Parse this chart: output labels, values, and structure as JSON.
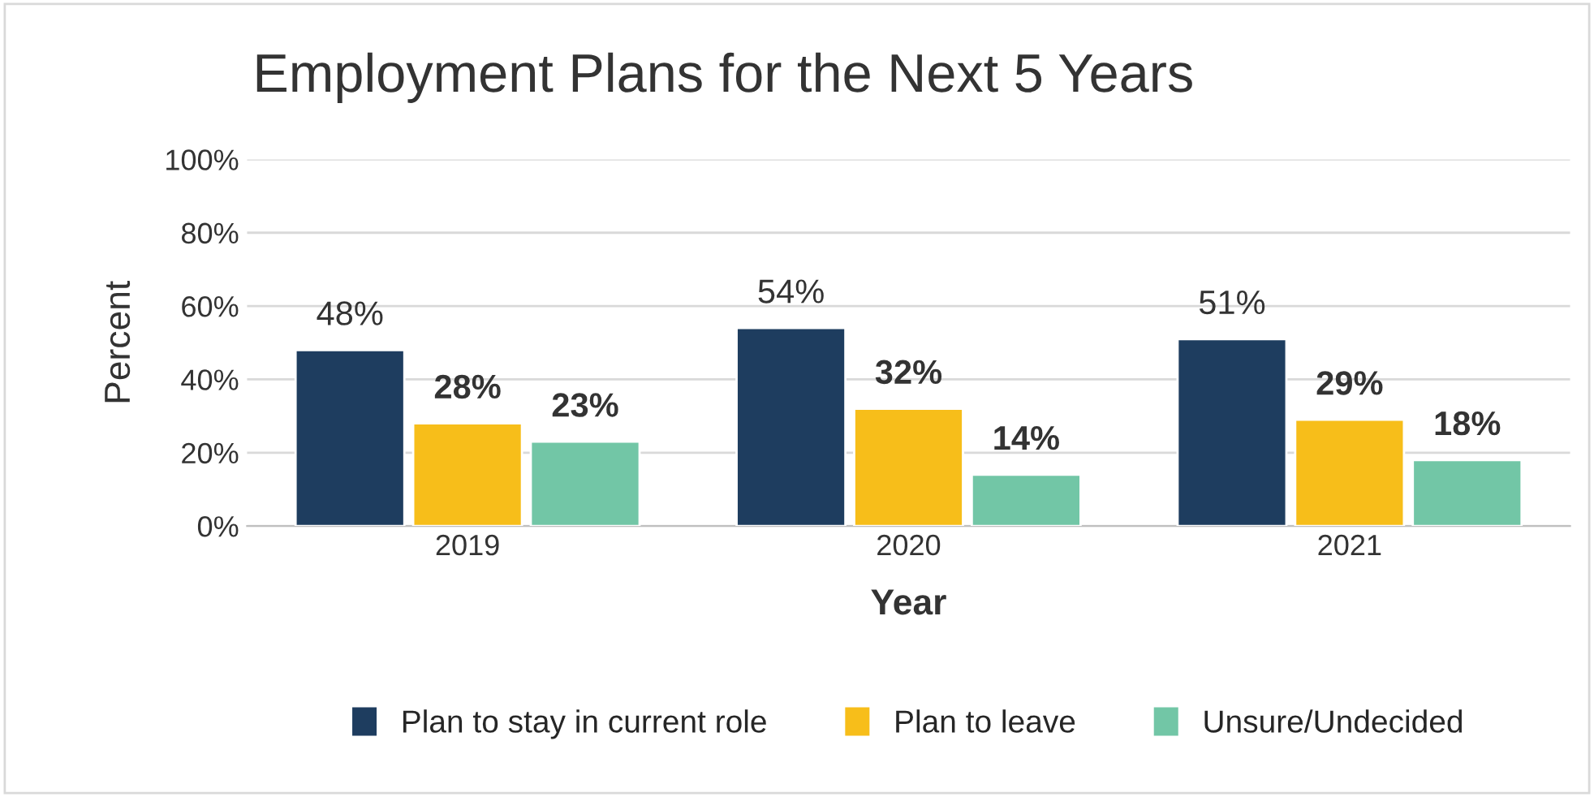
{
  "chart_data": {
    "type": "bar",
    "title": "Employment Plans for the Next 5 Years",
    "xlabel": "Year",
    "ylabel": "Percent",
    "categories": [
      "2019",
      "2020",
      "2021"
    ],
    "series": [
      {
        "name": "Plan to stay in current role",
        "color": "#1e3d5f",
        "values": [
          48,
          54,
          51
        ],
        "value_labels": [
          "48%",
          "54%",
          "51%"
        ]
      },
      {
        "name": "Plan to leave",
        "color": "#f7be1a",
        "values": [
          28,
          32,
          29
        ],
        "value_labels": [
          "28%",
          "32%",
          "29%"
        ]
      },
      {
        "name": "Unsure/Undecided",
        "color": "#72c6a6",
        "values": [
          23,
          14,
          18
        ],
        "value_labels": [
          "23%",
          "14%",
          "18%"
        ]
      }
    ],
    "ylim": [
      0,
      100
    ],
    "yticks": [
      {
        "value": 0,
        "label": "0%"
      },
      {
        "value": 20,
        "label": "20%"
      },
      {
        "value": 40,
        "label": "40%"
      },
      {
        "value": 60,
        "label": "60%"
      },
      {
        "value": 80,
        "label": "80%"
      },
      {
        "value": 100,
        "label": "100%"
      }
    ],
    "grid": "y",
    "legend": "bottom"
  }
}
